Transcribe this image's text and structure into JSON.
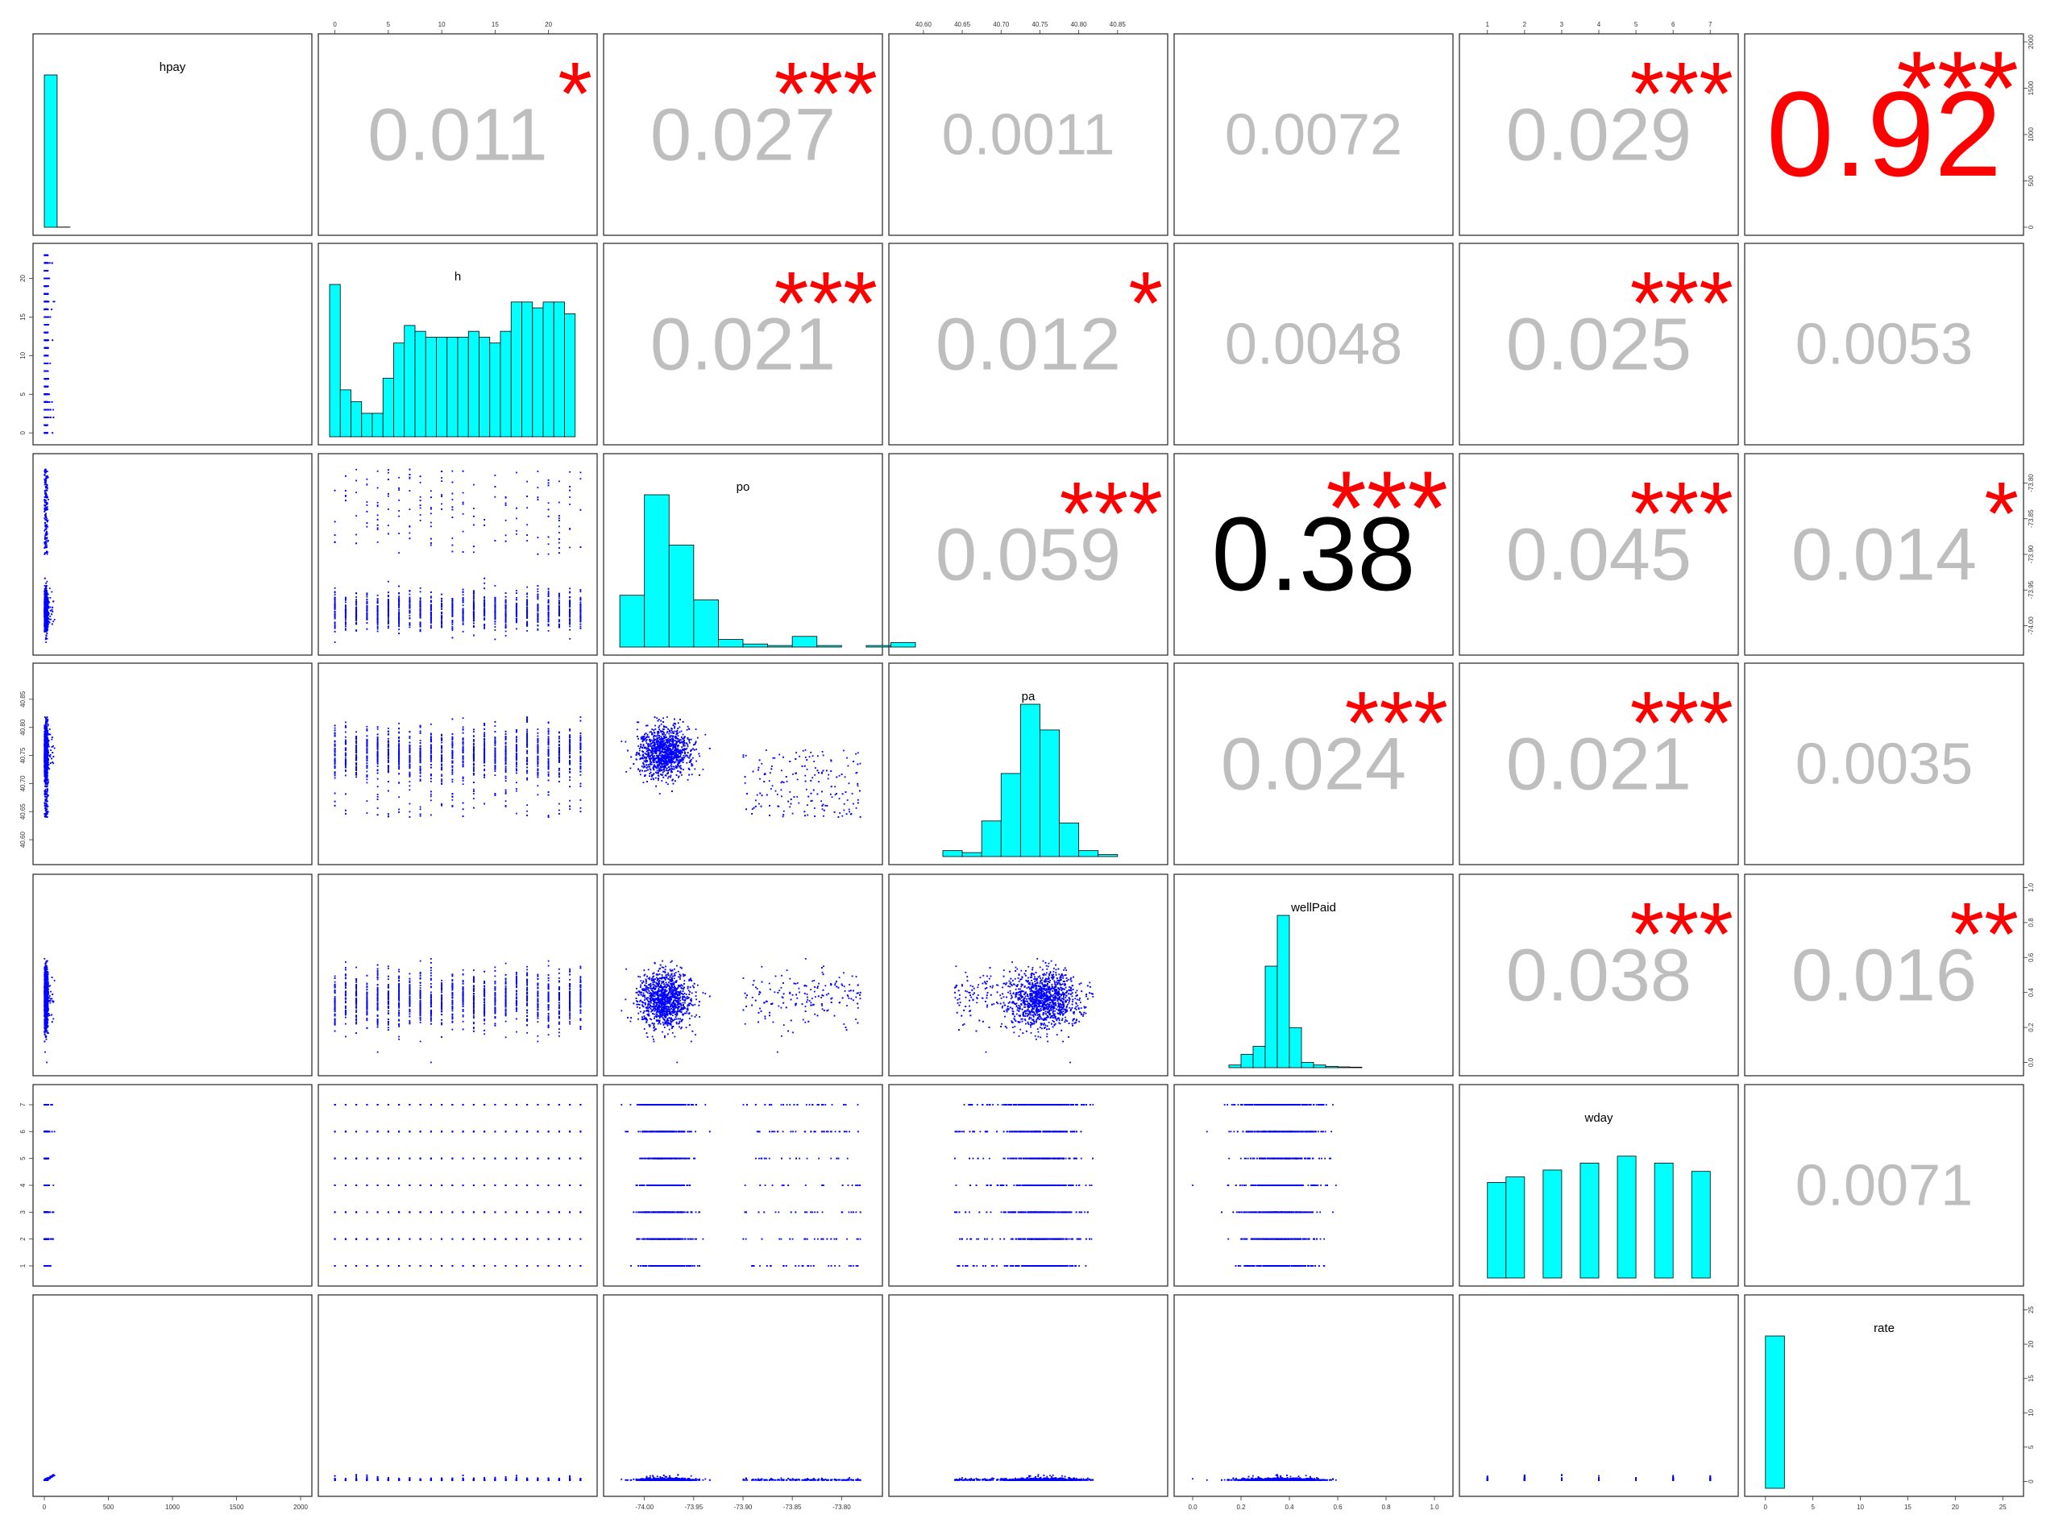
{
  "chart_data": {
    "type": "scatter-matrix",
    "variables": [
      {
        "name": "hpay",
        "ticks": [
          0,
          500,
          1000,
          1500,
          2000
        ],
        "range": [
          0,
          2000
        ],
        "hist": {
          "min": 0,
          "width": 100,
          "counts": [
            1600,
            2,
            0,
            0,
            0,
            0,
            0,
            0,
            0,
            0,
            0,
            0,
            0,
            0,
            0,
            0,
            0,
            0,
            0,
            0
          ]
        }
      },
      {
        "name": "h",
        "ticks": [
          0,
          5,
          10,
          15,
          20
        ],
        "range": [
          -0.5,
          23.5
        ],
        "hist": {
          "min": -0.5,
          "width": 1,
          "counts": [
            13,
            4,
            3,
            2,
            2,
            5,
            8,
            9.5,
            9,
            8.5,
            8.5,
            8.5,
            8.5,
            9,
            8.5,
            8,
            9,
            11.5,
            11.5,
            11,
            11.5,
            11.5,
            10.5,
            0
          ]
        }
      },
      {
        "name": "po",
        "ticks": [
          -74.0,
          -73.95,
          -73.9,
          -73.85,
          -73.8
        ],
        "tick_labels": [
          "-74.00",
          "-73.95",
          "-73.90",
          "-73.85",
          "-73.80"
        ],
        "range": [
          -74.03,
          -73.77
        ],
        "hist": {
          "min": -74.025,
          "width": 0.025,
          "counts": [
            34,
            100,
            67,
            31,
            5,
            2,
            1,
            7,
            1,
            0,
            1,
            3
          ]
        }
      },
      {
        "name": "pa",
        "ticks": [
          40.6,
          40.65,
          40.7,
          40.75,
          40.8,
          40.85
        ],
        "tick_labels": [
          "40.60",
          "40.65",
          "40.70",
          "40.75",
          "40.80",
          "40.85"
        ],
        "range": [
          40.57,
          40.9
        ],
        "hist": {
          "min": 40.6,
          "width": 0.025,
          "counts": [
            0,
            3,
            2,
            18,
            42,
            77,
            64,
            17,
            3,
            1,
            0
          ]
        }
      },
      {
        "name": "wellPaid",
        "ticks": [
          0,
          0.2,
          0.4,
          0.6,
          0.8,
          1.0
        ],
        "tick_labels": [
          "0.0",
          "0.2",
          "0.4",
          "0.6",
          "0.8",
          "1.0"
        ],
        "range": [
          -0.03,
          1.03
        ],
        "hist": {
          "min": 0,
          "width": 0.05,
          "counts": [
            0,
            0,
            0,
            1,
            5,
            8,
            38,
            57,
            15,
            2,
            1,
            0.5,
            0.3,
            0.2,
            0,
            0,
            0,
            0,
            0,
            0
          ]
        }
      },
      {
        "name": "wday",
        "ticks": [
          1,
          2,
          3,
          4,
          5,
          6,
          7
        ],
        "range": [
          0.55,
          7.45
        ],
        "hist": {
          "type": "bars",
          "x": [
            1,
            1.5,
            2,
            3,
            4,
            5,
            6,
            7
          ],
          "counts": [
            0,
            0,
            0,
            0,
            0,
            0,
            0,
            0
          ],
          "bars": [
            {
              "x0": 1.0,
              "x1": 1.5,
              "v": 69
            },
            {
              "x0": 1.5,
              "x1": 2.0,
              "v": 73
            },
            {
              "x0": 2.5,
              "x1": 3.0,
              "v": 78
            },
            {
              "x0": 3.5,
              "x1": 4.0,
              "v": 83
            },
            {
              "x0": 4.5,
              "x1": 5.0,
              "v": 88
            },
            {
              "x0": 5.5,
              "x1": 6.0,
              "v": 83
            },
            {
              "x0": 6.5,
              "x1": 7.0,
              "v": 77
            }
          ]
        }
      },
      {
        "name": "rate",
        "ticks": [
          0,
          5,
          10,
          15,
          20,
          25
        ],
        "range": [
          -1,
          26
        ],
        "hist": {
          "min": 0,
          "width": 2,
          "counts": [
            1600,
            0,
            0,
            0,
            0,
            0,
            0,
            0,
            0,
            0,
            0,
            0,
            0
          ]
        }
      }
    ],
    "correlations": [
      {
        "row": 0,
        "col": 1,
        "value": "0.011",
        "stars": "*"
      },
      {
        "row": 0,
        "col": 2,
        "value": "0.027",
        "stars": "***"
      },
      {
        "row": 0,
        "col": 3,
        "value": "0.0011",
        "stars": ""
      },
      {
        "row": 0,
        "col": 4,
        "value": "0.0072",
        "stars": ""
      },
      {
        "row": 0,
        "col": 5,
        "value": "0.029",
        "stars": "***"
      },
      {
        "row": 0,
        "col": 6,
        "value": "0.92",
        "stars": "***",
        "color": "#ff0000"
      },
      {
        "row": 1,
        "col": 2,
        "value": "0.021",
        "stars": "***"
      },
      {
        "row": 1,
        "col": 3,
        "value": "0.012",
        "stars": "*"
      },
      {
        "row": 1,
        "col": 4,
        "value": "0.0048",
        "stars": ""
      },
      {
        "row": 1,
        "col": 5,
        "value": "0.025",
        "stars": "***"
      },
      {
        "row": 1,
        "col": 6,
        "value": "0.0053",
        "stars": ""
      },
      {
        "row": 2,
        "col": 3,
        "value": "0.059",
        "stars": "***"
      },
      {
        "row": 2,
        "col": 4,
        "value": "0.38",
        "stars": "***",
        "color": "#000000"
      },
      {
        "row": 2,
        "col": 5,
        "value": "0.045",
        "stars": "***"
      },
      {
        "row": 2,
        "col": 6,
        "value": "0.014",
        "stars": "*"
      },
      {
        "row": 3,
        "col": 4,
        "value": "0.024",
        "stars": "***"
      },
      {
        "row": 3,
        "col": 5,
        "value": "0.021",
        "stars": "***"
      },
      {
        "row": 3,
        "col": 6,
        "value": "0.0035",
        "stars": ""
      },
      {
        "row": 4,
        "col": 5,
        "value": "0.038",
        "stars": "***"
      },
      {
        "row": 4,
        "col": 6,
        "value": "0.016",
        "stars": "**"
      },
      {
        "row": 5,
        "col": 6,
        "value": "0.0071",
        "stars": ""
      }
    ],
    "colors": {
      "points": "#0000ff",
      "hist_fill": "#00ffff",
      "weak_corr": "#bebebe",
      "stars": "#ff0000"
    }
  }
}
